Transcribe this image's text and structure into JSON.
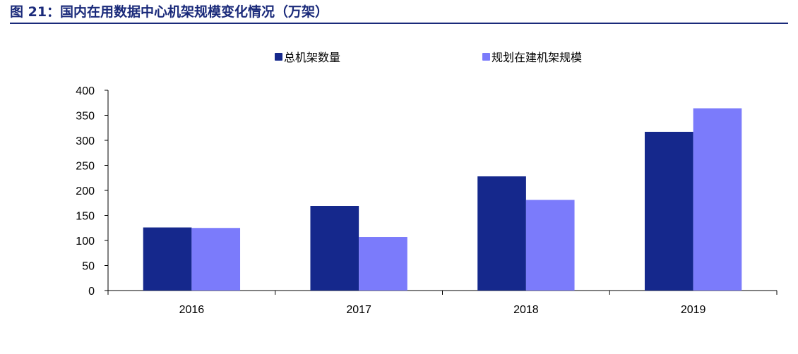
{
  "figure": {
    "title": "图 21：国内在用数据中心机架规模变化情况（万架）"
  },
  "chart_data": {
    "type": "bar",
    "title": "",
    "xlabel": "",
    "ylabel": "",
    "categories": [
      "2016",
      "2017",
      "2018",
      "2019"
    ],
    "series": [
      {
        "name": "总机架数量",
        "color": "#15288c",
        "values": [
          126,
          169,
          228,
          317
        ]
      },
      {
        "name": "规划在建机架规模",
        "color": "#7b7bfb",
        "values": [
          125,
          107,
          181,
          364
        ]
      }
    ],
    "ylim": [
      0,
      400
    ],
    "yticks": [
      0,
      50,
      100,
      150,
      200,
      250,
      300,
      350,
      400
    ],
    "grid": false,
    "legend_position": "top-center"
  }
}
